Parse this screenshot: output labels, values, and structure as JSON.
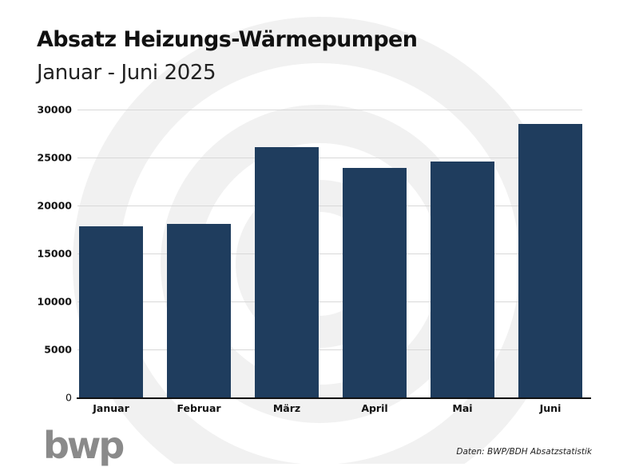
{
  "header": {
    "title": "Absatz Heizungs-Wärmepumpen",
    "subtitle": "Januar - Juni 2025"
  },
  "footer": {
    "logo": "bwp",
    "source": "Daten: BWP/BDH Absatzstatistik"
  },
  "colors": {
    "bar": "#1f3d5e",
    "grid": "#d8d8d8",
    "watermark": "#f1f1f1",
    "logo": "#8a8a8a"
  },
  "chart_data": {
    "type": "bar",
    "title": "Absatz Heizungs-Wärmepumpen",
    "subtitle": "Januar - Juni 2025",
    "xlabel": "",
    "ylabel": "",
    "categories": [
      "Januar",
      "Februar",
      "März",
      "April",
      "Mai",
      "Juni"
    ],
    "values": [
      17800,
      18100,
      26100,
      23900,
      24600,
      28500
    ],
    "yticks": [
      "0",
      "5000",
      "10000",
      "15000",
      "20000",
      "25000",
      "30000"
    ],
    "ylim": [
      0,
      30000
    ],
    "grid": true,
    "legend": "none",
    "source": "Daten: BWP/BDH Absatzstatistik"
  }
}
